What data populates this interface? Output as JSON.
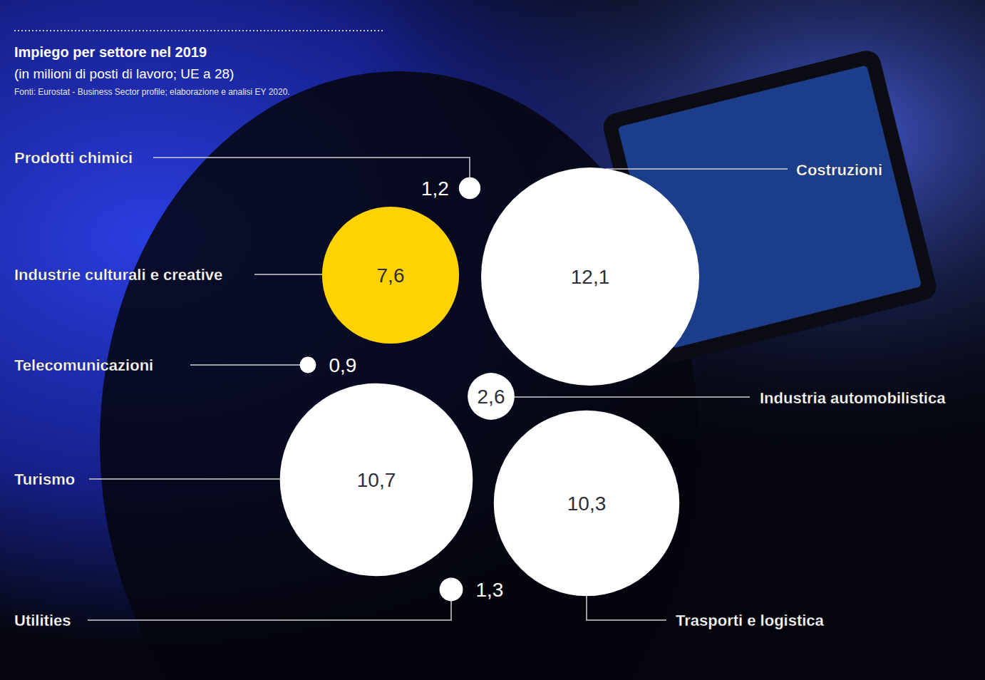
{
  "chart_data": {
    "type": "bubble",
    "title": "Impiego per settore nel 2019",
    "subtitle": "(in milioni di posti di lavoro; UE a 28)",
    "source": "Fonti: Eurostat - Business Sector profile; elaborazione e analisi EY 2020.",
    "categories": [
      "Prodotti chimici",
      "Costruzioni",
      "Industrie culturali e creative",
      "Telecomunicazioni",
      "Industria automobilistica",
      "Turismo",
      "Trasporti e logistica",
      "Utilities"
    ],
    "values": [
      1.2,
      12.1,
      7.6,
      0.9,
      2.6,
      10.7,
      10.3,
      1.3
    ],
    "value_labels": [
      "1,2",
      "12,1",
      "7,6",
      "0,9",
      "2,6",
      "10,7",
      "10,3",
      "1,3"
    ],
    "colors": [
      "#ffffff",
      "#ffffff",
      "#ffd200",
      "#ffffff",
      "#ffffff",
      "#ffffff",
      "#ffffff",
      "#ffffff"
    ],
    "data_labels": true
  }
}
